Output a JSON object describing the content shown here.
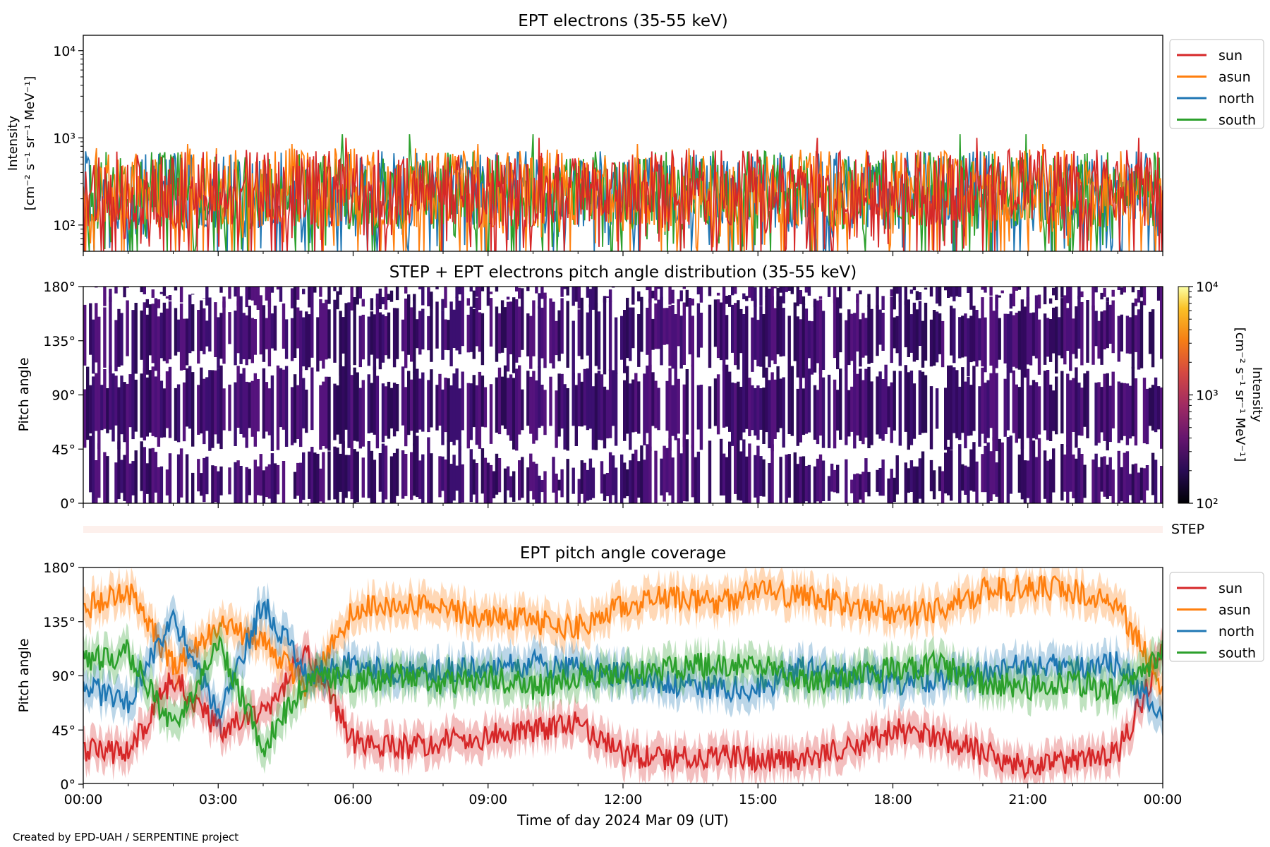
{
  "figure": {
    "footer": "Created by EPD-UAH / SERPENTINE project",
    "xlabel": "Time of day 2024 Mar 09 (UT)",
    "x_ticks": [
      "00:00",
      "03:00",
      "06:00",
      "09:00",
      "12:00",
      "15:00",
      "18:00",
      "21:00",
      "00:00"
    ],
    "channel_colors": {
      "sun": "#d62728",
      "asun": "#ff7f0e",
      "north": "#1f77b4",
      "south": "#2ca02c"
    }
  },
  "chart_data": [
    {
      "type": "line",
      "title": "EPT electrons (35-55 keV)",
      "ylabel_line1": "Intensity",
      "ylabel_line2": "[cm⁻² s⁻¹ sr⁻¹ MeV⁻¹]",
      "y_scale": "log",
      "ylim": [
        50,
        15000
      ],
      "y_ticks": [
        {
          "value": 100,
          "label": "10²"
        },
        {
          "value": 1000,
          "label": "10³"
        },
        {
          "value": 10000,
          "label": "10⁴"
        }
      ],
      "x_range_hours": [
        0,
        24
      ],
      "legend_position": "outside-right-top",
      "series": [
        {
          "name": "north",
          "color": "#1f77b4",
          "typical_intensity": 250,
          "peak_intensity": 700
        },
        {
          "name": "south",
          "color": "#2ca02c",
          "typical_intensity": 250,
          "peak_intensity": 1100
        },
        {
          "name": "asun",
          "color": "#ff7f0e",
          "typical_intensity": 270,
          "peak_intensity": 850
        },
        {
          "name": "sun",
          "color": "#d62728",
          "typical_intensity": 260,
          "peak_intensity": 1000
        }
      ]
    },
    {
      "type": "heatmap",
      "title": "STEP + EPT electrons pitch angle distribution (35-55 keV)",
      "ylabel": "Pitch angle",
      "ylim": [
        0,
        180
      ],
      "y_ticks": [
        "0°",
        "45°",
        "90°",
        "135°",
        "180°"
      ],
      "colorbar": {
        "scale": "log",
        "range": [
          100,
          10000
        ],
        "colormap": "inferno",
        "ticks": [
          "10²",
          "10³",
          "10⁴"
        ],
        "label_line1": "Intensity",
        "label_line2": "[cm⁻² s⁻¹ sr⁻¹ MeV⁻¹]"
      },
      "typical_intensity": 300,
      "strip_label": "STEP"
    },
    {
      "type": "line",
      "title": "EPT pitch angle coverage",
      "ylabel": "Pitch angle",
      "ylim": [
        0,
        180
      ],
      "y_ticks": [
        "0°",
        "45°",
        "90°",
        "135°",
        "180°"
      ],
      "legend_position": "outside-right-top",
      "series": [
        {
          "name": "sun",
          "color": "#d62728",
          "x": [
            0,
            1,
            2,
            3,
            4,
            5,
            6,
            7,
            8,
            9,
            10,
            11,
            12,
            13,
            14,
            15,
            16,
            17,
            18,
            19,
            20,
            21,
            22,
            23,
            24
          ],
          "y": [
            30,
            25,
            90,
            45,
            60,
            110,
            35,
            30,
            35,
            40,
            45,
            50,
            25,
            20,
            25,
            20,
            20,
            30,
            45,
            40,
            25,
            15,
            20,
            25,
            110
          ]
        },
        {
          "name": "asun",
          "color": "#ff7f0e",
          "x": [
            0,
            1,
            2,
            3,
            4,
            5,
            6,
            7,
            8,
            9,
            10,
            11,
            12,
            13,
            14,
            15,
            16,
            17,
            18,
            19,
            20,
            21,
            22,
            23,
            24
          ],
          "y": [
            145,
            160,
            100,
            130,
            120,
            80,
            145,
            150,
            145,
            140,
            135,
            130,
            150,
            155,
            150,
            160,
            155,
            150,
            140,
            145,
            160,
            165,
            160,
            150,
            80
          ]
        },
        {
          "name": "north",
          "color": "#1f77b4",
          "x": [
            0,
            1,
            2,
            3,
            4,
            5,
            6,
            7,
            8,
            9,
            10,
            11,
            12,
            13,
            14,
            15,
            16,
            17,
            18,
            19,
            20,
            21,
            22,
            23,
            24
          ],
          "y": [
            80,
            70,
            140,
            60,
            150,
            90,
            100,
            90,
            95,
            95,
            100,
            95,
            90,
            85,
            80,
            80,
            95,
            90,
            85,
            85,
            95,
            100,
            95,
            100,
            60
          ]
        },
        {
          "name": "south",
          "color": "#2ca02c",
          "x": [
            0,
            1,
            2,
            3,
            4,
            5,
            6,
            7,
            8,
            9,
            10,
            11,
            12,
            13,
            14,
            15,
            16,
            17,
            18,
            19,
            20,
            21,
            22,
            23,
            24
          ],
          "y": [
            100,
            110,
            45,
            120,
            30,
            90,
            85,
            90,
            85,
            90,
            80,
            90,
            90,
            95,
            100,
            100,
            85,
            90,
            95,
            100,
            85,
            80,
            85,
            75,
            110
          ]
        }
      ]
    }
  ]
}
